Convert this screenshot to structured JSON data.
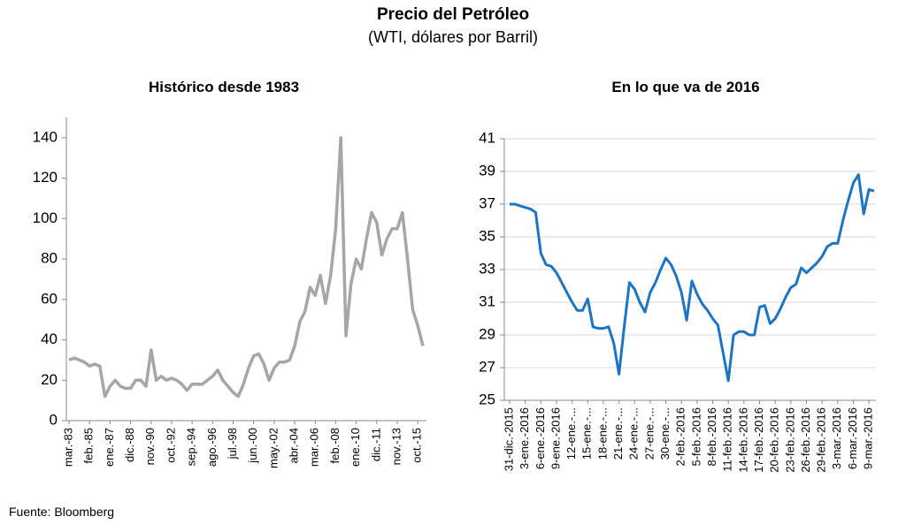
{
  "header": {
    "title": "Precio del Petróleo",
    "subtitle": "(WTI, dólares por Barril)"
  },
  "source": "Fuente: Bloomberg",
  "chart_data": [
    {
      "type": "line",
      "title": "Histórico desde 1983",
      "color": "#a6a6a6",
      "grid": false,
      "categories": [
        "mar.-83",
        null,
        null,
        null,
        "feb.-85",
        null,
        null,
        null,
        "ene.-87",
        null,
        null,
        null,
        "dic.-88",
        null,
        null,
        null,
        "nov.-90",
        null,
        null,
        null,
        "oct.-92",
        null,
        null,
        null,
        "sep.-94",
        null,
        null,
        null,
        "ago.-96",
        null,
        null,
        null,
        "jul.-98",
        null,
        null,
        null,
        "jun.-00",
        null,
        null,
        null,
        "may.-02",
        null,
        null,
        null,
        "abr.-04",
        null,
        null,
        null,
        "mar.-06",
        null,
        null,
        null,
        "feb.-08",
        null,
        null,
        null,
        "ene.-10",
        null,
        null,
        null,
        "dic.-11",
        null,
        null,
        null,
        "nov.-13",
        null,
        null,
        null,
        "oct.-15",
        null
      ],
      "values": [
        30,
        31,
        30,
        29,
        27,
        28,
        27,
        12,
        17,
        20,
        17,
        16,
        16,
        20,
        20,
        17,
        35,
        20,
        22,
        20,
        21,
        20,
        18,
        15,
        18,
        18,
        18,
        20,
        22,
        25,
        20,
        17,
        14,
        12,
        18,
        26,
        32,
        33,
        28,
        20,
        26,
        29,
        29,
        30,
        37,
        49,
        54,
        66,
        62,
        72,
        58,
        72,
        95,
        140,
        42,
        68,
        80,
        75,
        90,
        103,
        98,
        82,
        90,
        95,
        95,
        103,
        80,
        55,
        47,
        37
      ],
      "ylim": [
        0,
        150
      ],
      "yticks": [
        0,
        20,
        40,
        60,
        80,
        100,
        120,
        140
      ]
    },
    {
      "type": "line",
      "title": "En lo que va de 2016",
      "color": "#1b75c4",
      "grid": true,
      "categories": [
        "31-dic.-2015",
        null,
        null,
        "3-ene.-2016",
        null,
        null,
        "6-ene.-2016",
        null,
        null,
        "9-ene.-2016",
        null,
        null,
        "12-ene.-...",
        null,
        null,
        "15-ene.-...",
        null,
        null,
        "18-ene.-...",
        null,
        null,
        "21-ene.-...",
        null,
        null,
        "24-ene.-...",
        null,
        null,
        "27-ene.-...",
        null,
        null,
        "30-ene.-...",
        null,
        null,
        "2-feb.-2016",
        null,
        null,
        "5-feb.-2016",
        null,
        null,
        "8-feb.-2016",
        null,
        null,
        "11-feb.-2016",
        null,
        null,
        "14-feb.-2016",
        null,
        null,
        "17-feb.-2016",
        null,
        null,
        "20-feb.-2016",
        null,
        null,
        "23-feb.-2016",
        null,
        null,
        "26-feb.-2016",
        null,
        null,
        "29-feb.-2016",
        null,
        null,
        "3-mar.-2016",
        null,
        null,
        "6-mar.-2016",
        null,
        null,
        "9-mar.-2016",
        null
      ],
      "values": [
        37.0,
        37.0,
        36.9,
        36.8,
        36.7,
        36.5,
        34.0,
        33.3,
        33.2,
        32.8,
        32.2,
        31.6,
        31.0,
        30.5,
        30.5,
        31.2,
        29.5,
        29.4,
        29.4,
        29.5,
        28.5,
        26.6,
        29.5,
        32.2,
        31.8,
        31.0,
        30.4,
        31.6,
        32.2,
        33.0,
        33.7,
        33.3,
        32.6,
        31.6,
        29.9,
        32.3,
        31.5,
        30.9,
        30.5,
        30.0,
        29.6,
        27.9,
        26.2,
        29.0,
        29.2,
        29.2,
        29.0,
        29.0,
        30.7,
        30.8,
        29.7,
        30.0,
        30.6,
        31.3,
        31.9,
        32.1,
        33.1,
        32.8,
        33.1,
        33.4,
        33.8,
        34.4,
        34.6,
        34.6,
        36.0,
        37.2,
        38.3,
        38.8,
        36.4,
        37.9,
        37.8
      ],
      "ylim": [
        25,
        41
      ],
      "yticks": [
        25,
        27,
        29,
        31,
        33,
        35,
        37,
        39,
        41
      ]
    }
  ]
}
